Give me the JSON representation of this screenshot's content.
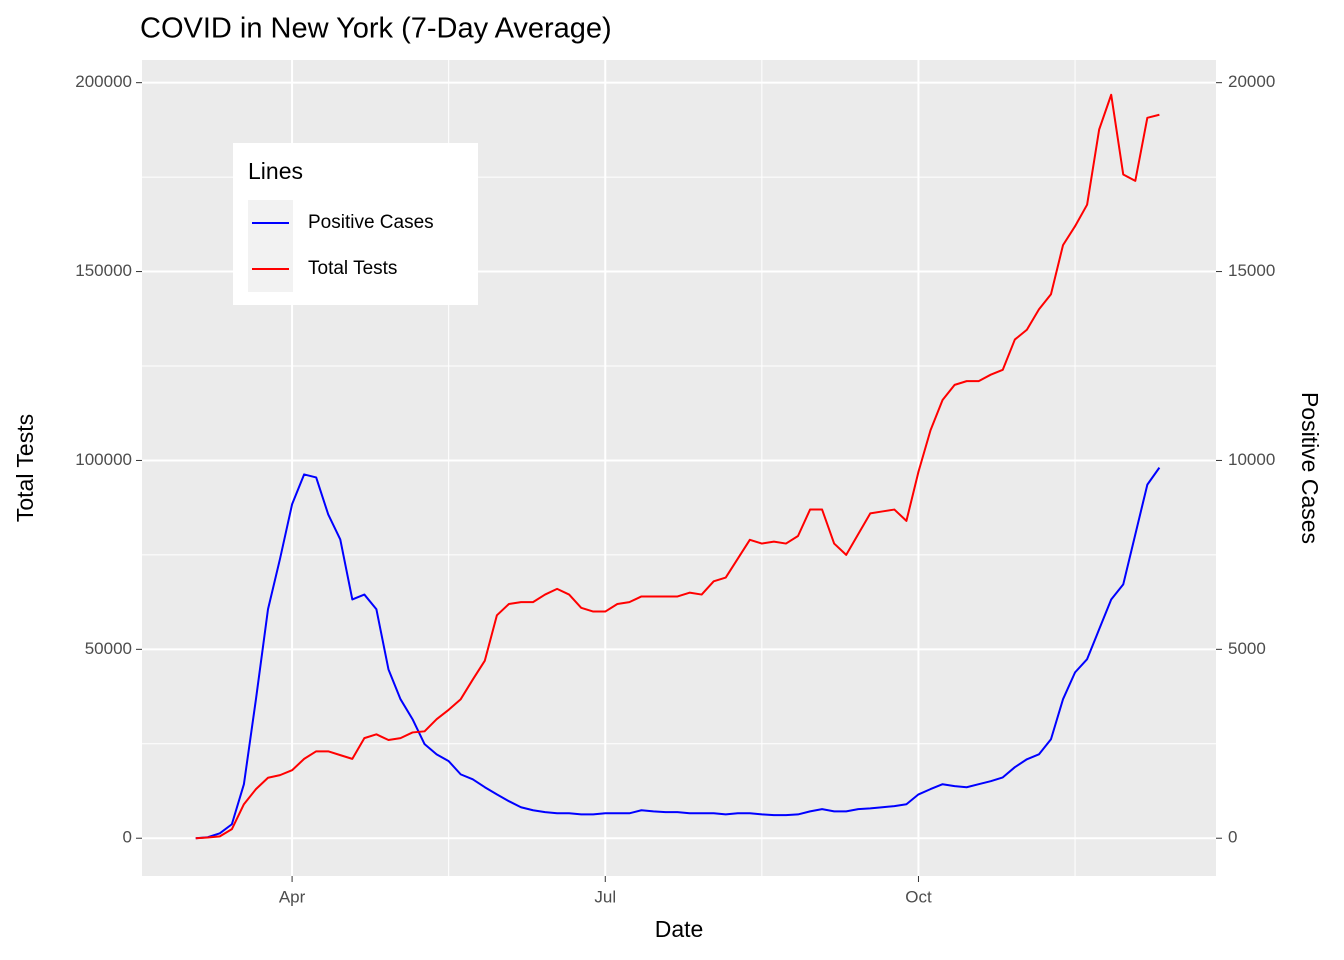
{
  "chart_data": {
    "type": "line",
    "title": "COVID in New York (7-Day Average)",
    "x_label": "Date",
    "y_label": "Total Tests",
    "y2_label": "Positive Cases",
    "legend_title": "Lines",
    "legend_position": "top-left",
    "grid": true,
    "categories": [
      null,
      null,
      null,
      null,
      null,
      null,
      null,
      null,
      "Apr",
      null,
      null,
      null,
      null,
      null,
      null,
      null,
      null,
      null,
      null,
      null,
      null,
      null,
      null,
      null,
      null,
      null,
      null,
      null,
      null,
      null,
      null,
      null,
      null,
      null,
      "Jul",
      null,
      null,
      null,
      null,
      null,
      null,
      null,
      null,
      null,
      null,
      null,
      null,
      null,
      null,
      null,
      null,
      null,
      null,
      null,
      null,
      null,
      null,
      null,
      null,
      null,
      "Oct",
      null,
      null,
      null,
      null,
      null,
      null,
      null,
      null,
      null,
      null,
      null,
      null,
      null,
      null,
      null,
      null,
      null,
      null,
      null,
      null
    ],
    "ylim": [
      -10000,
      206000
    ],
    "yticks": [
      0,
      50000,
      100000,
      150000,
      200000
    ],
    "y2lim": [
      -1000,
      20600
    ],
    "y2ticks": [
      0,
      5000,
      10000,
      15000,
      20000
    ],
    "series": [
      {
        "name": "Positive Cases",
        "color": "#0000ff",
        "axis": "y2",
        "values": [
          0,
          26,
          130,
          370,
          1430,
          3680,
          6060,
          7400,
          8840,
          9630,
          9550,
          8570,
          7910,
          6320,
          6450,
          6060,
          4470,
          3680,
          3150,
          2490,
          2220,
          2040,
          1690,
          1560,
          1350,
          1160,
          980,
          820,
          740,
          690,
          660,
          660,
          630,
          630,
          660,
          660,
          660,
          740,
          710,
          690,
          690,
          660,
          660,
          660,
          630,
          660,
          660,
          630,
          610,
          610,
          630,
          710,
          770,
          710,
          710,
          770,
          790,
          820,
          850,
          900,
          1160,
          1300,
          1430,
          1380,
          1350,
          1430,
          1510,
          1610,
          1880,
          2090,
          2220,
          2620,
          3680,
          4390,
          4740,
          5530,
          6320,
          6720,
          8040,
          9360,
          9810
        ]
      },
      {
        "name": "Total Tests",
        "color": "#ff0000",
        "axis": "y",
        "values": [
          0,
          200,
          500,
          2400,
          9000,
          13000,
          16000,
          16700,
          18000,
          21000,
          23000,
          23000,
          22000,
          21000,
          26500,
          27500,
          26000,
          26500,
          28000,
          28300,
          31500,
          34000,
          36800,
          42000,
          47000,
          59000,
          62000,
          62500,
          62500,
          64500,
          66000,
          64500,
          61000,
          60000,
          60000,
          62000,
          62500,
          64000,
          64000,
          64000,
          64000,
          65000,
          64500,
          68000,
          69000,
          74000,
          79000,
          78000,
          78500,
          78000,
          80000,
          87000,
          87000,
          78000,
          75000,
          80500,
          86000,
          86500,
          87000,
          84000,
          97000,
          108000,
          116000,
          120000,
          121000,
          121000,
          122700,
          124000,
          132000,
          134600,
          140000,
          144000,
          157000,
          162000,
          167700,
          187600,
          196800,
          175700,
          174000,
          190700,
          191500
        ]
      }
    ]
  }
}
